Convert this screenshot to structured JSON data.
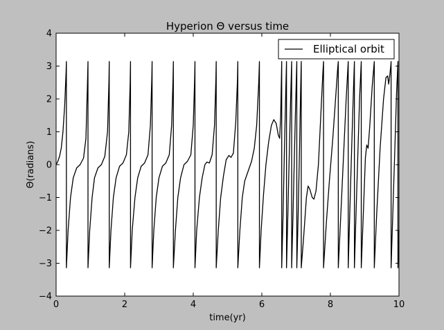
{
  "window": {
    "background": "#bfbfbf"
  },
  "chart_data": {
    "type": "line",
    "title": "Hyperion Θ versus time",
    "xlabel": "time(yr)",
    "ylabel": "Θ(radians)",
    "xlim": [
      0,
      10
    ],
    "ylim": [
      -4,
      4
    ],
    "xticks": [
      "0",
      "2",
      "4",
      "6",
      "8",
      "10"
    ],
    "yticks": [
      "4",
      "3",
      "2",
      "1",
      "0",
      "−1",
      "−2",
      "−3",
      "−4"
    ],
    "xtick_values": [
      0,
      2,
      4,
      6,
      8,
      10
    ],
    "ytick_values": [
      4,
      3,
      2,
      1,
      0,
      -1,
      -2,
      -3,
      -4
    ],
    "grid": false,
    "legend": {
      "position": "top-right",
      "entries": [
        "Elliptical orbit"
      ]
    },
    "series": [
      {
        "name": "Elliptical orbit",
        "color": "#000000",
        "wrap_times": [
          0.3,
          0.93,
          1.55,
          2.17,
          2.8,
          3.42,
          4.05,
          4.67,
          5.3,
          5.93,
          6.58,
          6.72,
          6.87,
          7.02,
          7.15,
          7.8,
          8.23,
          8.52,
          8.7,
          8.9,
          9.28,
          9.77,
          9.97
        ],
        "points": [
          [
            0.0,
            0.0
          ],
          [
            0.05,
            0.1
          ],
          [
            0.1,
            0.25
          ],
          [
            0.15,
            0.5
          ],
          [
            0.2,
            1.0
          ],
          [
            0.25,
            1.8
          ],
          [
            0.29,
            2.8
          ],
          [
            0.3,
            3.14
          ],
          [
            0.3,
            -3.14
          ],
          [
            0.35,
            -2.0
          ],
          [
            0.42,
            -1.0
          ],
          [
            0.5,
            -0.4
          ],
          [
            0.6,
            -0.1
          ],
          [
            0.7,
            0.0
          ],
          [
            0.8,
            0.2
          ],
          [
            0.87,
            0.8
          ],
          [
            0.91,
            2.3
          ],
          [
            0.93,
            3.14
          ],
          [
            0.93,
            -3.14
          ],
          [
            0.98,
            -2.0
          ],
          [
            1.05,
            -1.0
          ],
          [
            1.12,
            -0.4
          ],
          [
            1.22,
            -0.1
          ],
          [
            1.32,
            0.0
          ],
          [
            1.42,
            0.25
          ],
          [
            1.5,
            1.0
          ],
          [
            1.54,
            2.5
          ],
          [
            1.55,
            3.14
          ],
          [
            1.55,
            -3.14
          ],
          [
            1.6,
            -2.0
          ],
          [
            1.67,
            -1.0
          ],
          [
            1.75,
            -0.4
          ],
          [
            1.85,
            -0.05
          ],
          [
            1.95,
            0.05
          ],
          [
            2.05,
            0.3
          ],
          [
            2.12,
            1.0
          ],
          [
            2.16,
            2.5
          ],
          [
            2.17,
            3.14
          ],
          [
            2.17,
            -3.14
          ],
          [
            2.22,
            -2.0
          ],
          [
            2.3,
            -1.0
          ],
          [
            2.38,
            -0.4
          ],
          [
            2.48,
            -0.05
          ],
          [
            2.58,
            0.05
          ],
          [
            2.68,
            0.3
          ],
          [
            2.75,
            1.2
          ],
          [
            2.79,
            2.6
          ],
          [
            2.8,
            3.14
          ],
          [
            2.8,
            -3.14
          ],
          [
            2.85,
            -2.0
          ],
          [
            2.92,
            -1.0
          ],
          [
            3.0,
            -0.4
          ],
          [
            3.1,
            -0.05
          ],
          [
            3.2,
            0.05
          ],
          [
            3.3,
            0.3
          ],
          [
            3.37,
            1.2
          ],
          [
            3.41,
            2.6
          ],
          [
            3.42,
            3.14
          ],
          [
            3.42,
            -3.14
          ],
          [
            3.48,
            -2.0
          ],
          [
            3.55,
            -1.0
          ],
          [
            3.63,
            -0.4
          ],
          [
            3.73,
            0.0
          ],
          [
            3.83,
            0.1
          ],
          [
            3.93,
            0.3
          ],
          [
            4.0,
            1.2
          ],
          [
            4.04,
            2.6
          ],
          [
            4.05,
            3.14
          ],
          [
            4.05,
            -3.14
          ],
          [
            4.1,
            -2.0
          ],
          [
            4.18,
            -1.0
          ],
          [
            4.26,
            -0.4
          ],
          [
            4.34,
            0.0
          ],
          [
            4.4,
            0.08
          ],
          [
            4.47,
            0.05
          ],
          [
            4.55,
            0.3
          ],
          [
            4.62,
            1.2
          ],
          [
            4.66,
            2.6
          ],
          [
            4.67,
            3.14
          ],
          [
            4.67,
            -3.14
          ],
          [
            4.73,
            -2.0
          ],
          [
            4.8,
            -1.0
          ],
          [
            4.88,
            -0.35
          ],
          [
            4.96,
            0.15
          ],
          [
            5.04,
            0.28
          ],
          [
            5.1,
            0.22
          ],
          [
            5.17,
            0.35
          ],
          [
            5.24,
            1.3
          ],
          [
            5.29,
            2.6
          ],
          [
            5.3,
            3.14
          ],
          [
            5.3,
            -3.14
          ],
          [
            5.36,
            -2.0
          ],
          [
            5.43,
            -1.0
          ],
          [
            5.5,
            -0.5
          ],
          [
            5.6,
            -0.2
          ],
          [
            5.7,
            0.1
          ],
          [
            5.78,
            0.5
          ],
          [
            5.85,
            1.2
          ],
          [
            5.91,
            2.5
          ],
          [
            5.93,
            3.14
          ],
          [
            5.93,
            -3.14
          ],
          [
            5.98,
            -2.0
          ],
          [
            6.05,
            -0.9
          ],
          [
            6.12,
            0.0
          ],
          [
            6.2,
            0.7
          ],
          [
            6.28,
            1.2
          ],
          [
            6.35,
            1.37
          ],
          [
            6.42,
            1.25
          ],
          [
            6.48,
            0.9
          ],
          [
            6.52,
            0.8
          ],
          [
            6.55,
            1.5
          ],
          [
            6.57,
            2.6
          ],
          [
            6.58,
            3.14
          ],
          [
            6.58,
            -3.14
          ],
          [
            6.62,
            -1.5
          ],
          [
            6.66,
            0.5
          ],
          [
            6.7,
            2.3
          ],
          [
            6.72,
            3.14
          ],
          [
            6.72,
            -3.14
          ],
          [
            6.76,
            -1.5
          ],
          [
            6.8,
            0.3
          ],
          [
            6.84,
            2.0
          ],
          [
            6.87,
            3.14
          ],
          [
            6.87,
            -3.14
          ],
          [
            6.91,
            -1.5
          ],
          [
            6.95,
            0.3
          ],
          [
            6.99,
            2.0
          ],
          [
            7.02,
            3.14
          ],
          [
            7.02,
            -3.14
          ],
          [
            7.06,
            -1.5
          ],
          [
            7.1,
            0.5
          ],
          [
            7.13,
            2.2
          ],
          [
            7.15,
            3.14
          ],
          [
            7.15,
            -3.14
          ],
          [
            7.22,
            -2.2
          ],
          [
            7.3,
            -1.0
          ],
          [
            7.35,
            -0.65
          ],
          [
            7.4,
            -0.75
          ],
          [
            7.47,
            -1.0
          ],
          [
            7.52,
            -1.05
          ],
          [
            7.58,
            -0.8
          ],
          [
            7.65,
            0.0
          ],
          [
            7.72,
            1.5
          ],
          [
            7.78,
            2.8
          ],
          [
            7.8,
            3.14
          ],
          [
            7.8,
            -3.14
          ],
          [
            7.88,
            -1.8
          ],
          [
            7.97,
            -0.5
          ],
          [
            8.07,
            0.8
          ],
          [
            8.15,
            2.0
          ],
          [
            8.21,
            2.9
          ],
          [
            8.23,
            3.14
          ],
          [
            8.23,
            -3.14
          ],
          [
            8.3,
            -1.6
          ],
          [
            8.38,
            0.2
          ],
          [
            8.46,
            2.0
          ],
          [
            8.52,
            3.14
          ],
          [
            8.52,
            -3.14
          ],
          [
            8.57,
            -1.3
          ],
          [
            8.62,
            0.5
          ],
          [
            8.67,
            2.2
          ],
          [
            8.7,
            3.14
          ],
          [
            8.7,
            -3.14
          ],
          [
            8.75,
            -1.4
          ],
          [
            8.8,
            0.3
          ],
          [
            8.85,
            2.0
          ],
          [
            8.9,
            3.14
          ],
          [
            8.9,
            -3.14
          ],
          [
            8.96,
            -1.5
          ],
          [
            9.02,
            0.2
          ],
          [
            9.06,
            0.6
          ],
          [
            9.1,
            0.5
          ],
          [
            9.15,
            1.2
          ],
          [
            9.22,
            2.4
          ],
          [
            9.28,
            3.14
          ],
          [
            9.28,
            -3.14
          ],
          [
            9.35,
            -1.5
          ],
          [
            9.45,
            0.5
          ],
          [
            9.55,
            2.0
          ],
          [
            9.62,
            2.65
          ],
          [
            9.67,
            2.7
          ],
          [
            9.7,
            2.45
          ],
          [
            9.73,
            2.7
          ],
          [
            9.76,
            3.0
          ],
          [
            9.77,
            3.14
          ],
          [
            9.77,
            -3.14
          ],
          [
            9.82,
            -1.5
          ],
          [
            9.88,
            0.5
          ],
          [
            9.93,
            2.2
          ],
          [
            9.97,
            3.14
          ],
          [
            9.97,
            -3.14
          ],
          [
            9.99,
            -2.4
          ],
          [
            10.0,
            -2.0
          ]
        ]
      }
    ]
  }
}
